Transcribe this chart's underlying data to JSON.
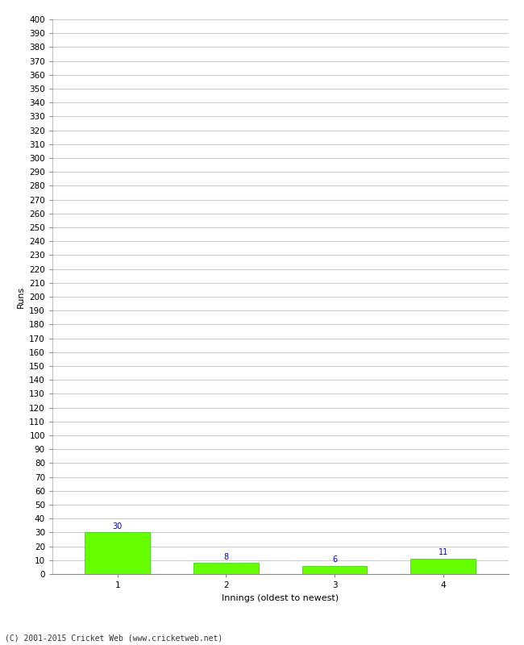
{
  "categories": [
    1,
    2,
    3,
    4
  ],
  "values": [
    30,
    8,
    6,
    11
  ],
  "bar_color": "#66ff00",
  "bar_edge_color": "#33cc00",
  "ylabel": "Runs",
  "xlabel": "Innings (oldest to newest)",
  "ylim": [
    0,
    400
  ],
  "yticks": [
    0,
    10,
    20,
    30,
    40,
    50,
    60,
    70,
    80,
    90,
    100,
    110,
    120,
    130,
    140,
    150,
    160,
    170,
    180,
    190,
    200,
    210,
    220,
    230,
    240,
    250,
    260,
    270,
    280,
    290,
    300,
    310,
    320,
    330,
    340,
    350,
    360,
    370,
    380,
    390,
    400
  ],
  "annotation_color": "#0000cc",
  "annotation_fontsize": 7,
  "footer": "(C) 2001-2015 Cricket Web (www.cricketweb.net)",
  "background_color": "#ffffff",
  "grid_color": "#cccccc",
  "tick_fontsize": 7.5,
  "label_fontsize": 8
}
